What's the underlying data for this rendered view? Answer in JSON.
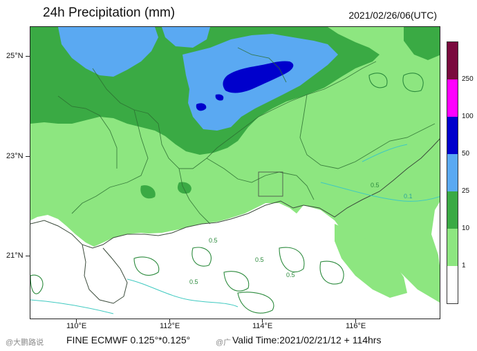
{
  "title": "24h Precipitation (mm)",
  "datetime": "2021/02/26/06(UTC)",
  "axes": {
    "lat_labels": [
      "25°N",
      "23°N",
      "21°N"
    ],
    "lon_labels": [
      "110°E",
      "112°E",
      "114°E",
      "116°E"
    ]
  },
  "legend": {
    "labels": [
      "250",
      "100",
      "50",
      "25",
      "10",
      "1"
    ],
    "colors": {
      "gt250": "#7a0a3e",
      "c100_250": "#ff00ff",
      "c50_100": "#0000cc",
      "c25_50": "#5aa9f2",
      "c10_25": "#3aaa44",
      "c1_10": "#8de680",
      "lt1": "#ffffff"
    }
  },
  "contour_labels": [
    "0.5",
    "0.5",
    "0.5",
    "0.5",
    "0.5",
    "0.1"
  ],
  "footer": {
    "model": "FINE ECMWF 0.125°*0.125°",
    "valid": "Valid Time:2021/02/21/12 + 114hrs"
  },
  "watermarks": [
    "@大鹏路说",
    "@广"
  ]
}
